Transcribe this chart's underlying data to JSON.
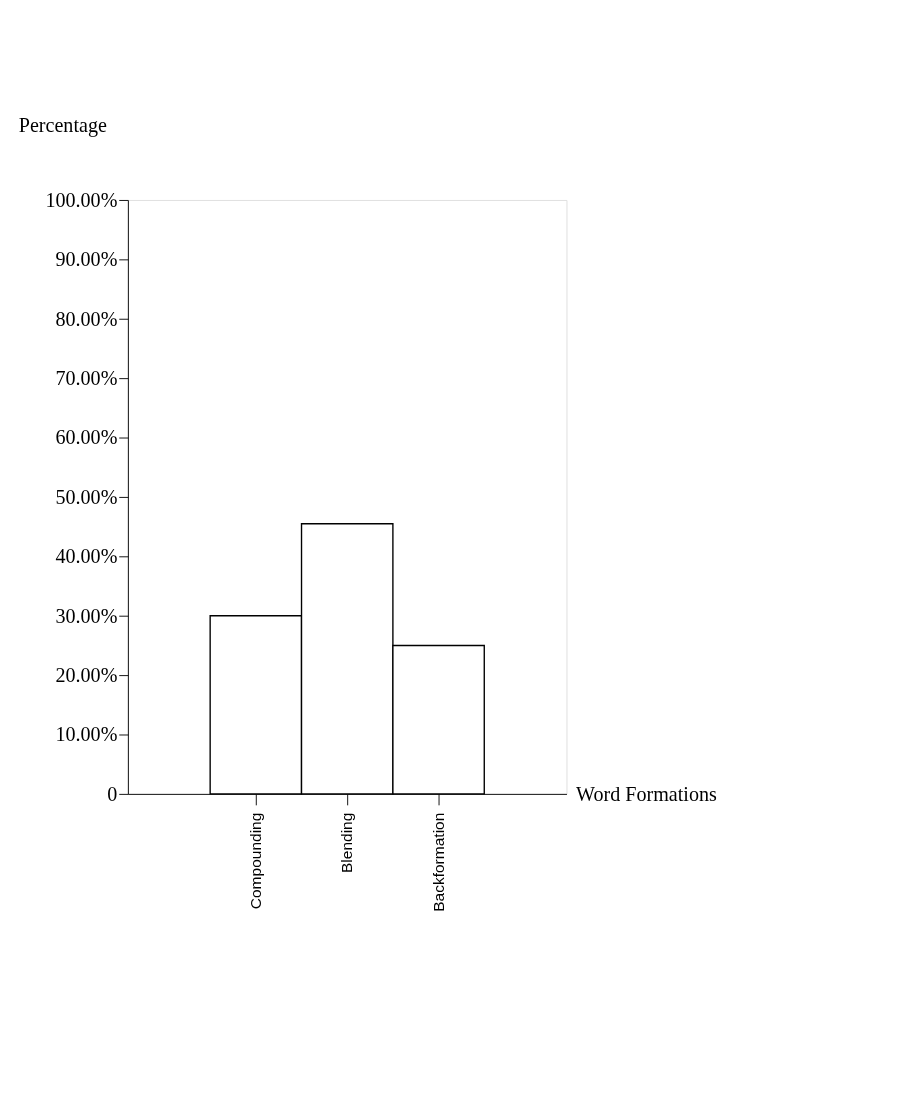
{
  "chart_data": {
    "type": "bar",
    "xlabel": "Word Formations",
    "ylabel": "Percentage",
    "categories": [
      "Compounding",
      "Blending",
      "Backformation"
    ],
    "values": [
      30,
      45.5,
      25
    ],
    "color": "#ffffff",
    "ylim": [
      0,
      100
    ],
    "yticks": [
      {
        "value": 0,
        "label": "0"
      },
      {
        "value": 10,
        "label": "10.00%"
      },
      {
        "value": 20,
        "label": "20.00%"
      },
      {
        "value": 30,
        "label": "30.00%"
      },
      {
        "value": 40,
        "label": "40.00%"
      },
      {
        "value": 50,
        "label": "50.00%"
      },
      {
        "value": 60,
        "label": "60.00%"
      },
      {
        "value": 70,
        "label": "70.00%"
      },
      {
        "value": 80,
        "label": "80.00%"
      },
      {
        "value": 90,
        "label": "90.00%"
      },
      {
        "value": 100,
        "label": "100.00%"
      }
    ],
    "grid": false
  }
}
